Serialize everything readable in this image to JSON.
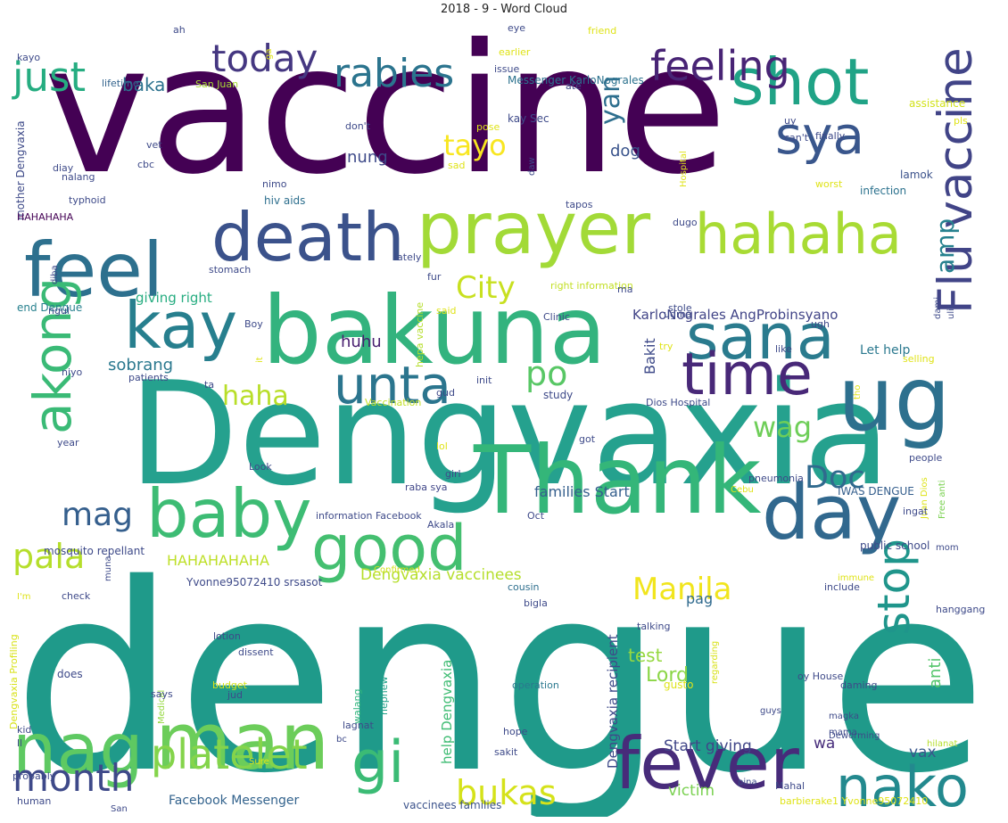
{
  "chart_data": {
    "type": "wordcloud",
    "title": "2018 - 9 - Word Cloud",
    "words": [
      {
        "text": "vaccine",
        "color": "#440154",
        "weight": 100
      },
      {
        "text": "dengue",
        "color": "#1f9a8a",
        "weight": 100
      },
      {
        "text": "Dengvaxia",
        "color": "#25a18e",
        "weight": 75
      },
      {
        "text": "bakuna",
        "color": "#33b37e",
        "weight": 60
      },
      {
        "text": "Thank",
        "color": "#34b679",
        "weight": 60
      },
      {
        "text": "sana",
        "color": "#2a7b8e",
        "weight": 50
      },
      {
        "text": "day",
        "color": "#31688e",
        "weight": 50
      },
      {
        "text": "fever",
        "color": "#472b7a",
        "weight": 45
      },
      {
        "text": "man",
        "color": "#6ccd5a",
        "weight": 45
      },
      {
        "text": "feel",
        "color": "#2d708e",
        "weight": 45
      },
      {
        "text": "death",
        "color": "#3b528b",
        "weight": 40
      },
      {
        "text": "prayer",
        "color": "#a2da37",
        "weight": 40
      },
      {
        "text": "ug",
        "color": "#2d708e",
        "weight": 40
      },
      {
        "text": "shot",
        "color": "#20a386",
        "weight": 35
      },
      {
        "text": "hahaha",
        "color": "#a8db34",
        "weight": 35
      },
      {
        "text": "Flu vaccine",
        "color": "#414487",
        "weight": 35
      },
      {
        "text": "kay",
        "color": "#277f8e",
        "weight": 35
      },
      {
        "text": "nag",
        "color": "#5ec962",
        "weight": 35
      },
      {
        "text": "baby",
        "color": "#3dbc74",
        "weight": 35
      },
      {
        "text": "good",
        "color": "#44bf70",
        "weight": 35
      },
      {
        "text": "time",
        "color": "#482878",
        "weight": 35
      },
      {
        "text": "unta",
        "color": "#2b758e",
        "weight": 32
      },
      {
        "text": "gi",
        "color": "#3bbb75",
        "weight": 32
      },
      {
        "text": "nako",
        "color": "#23898e",
        "weight": 32
      },
      {
        "text": "akong",
        "color": "#3aba76",
        "weight": 30
      },
      {
        "text": "sya",
        "color": "#39568c",
        "weight": 30
      },
      {
        "text": "stop",
        "color": "#1f958b",
        "weight": 28
      },
      {
        "text": "platelet",
        "color": "#84d44b",
        "weight": 28
      },
      {
        "text": "month",
        "color": "#3e4989",
        "weight": 25
      },
      {
        "text": "just",
        "color": "#26ad81",
        "weight": 25
      },
      {
        "text": "feeling",
        "color": "#482475",
        "weight": 25
      },
      {
        "text": "today",
        "color": "#453781",
        "weight": 25
      },
      {
        "text": "rabies",
        "color": "#2b748e",
        "weight": 25
      },
      {
        "text": "bukas",
        "color": "#d5e21a",
        "weight": 25
      },
      {
        "text": "pala",
        "color": "#b5de2b",
        "weight": 25
      },
      {
        "text": "mag",
        "color": "#355f8d",
        "weight": 25
      },
      {
        "text": "Doc",
        "color": "#306a8e",
        "weight": 25
      },
      {
        "text": "po",
        "color": "#58c765",
        "weight": 25
      },
      {
        "text": "City",
        "color": "#c8e020",
        "weight": 25
      },
      {
        "text": "Manila",
        "color": "#f1e51d",
        "weight": 22
      },
      {
        "text": "tayo",
        "color": "#f8e621",
        "weight": 20
      },
      {
        "text": "haha",
        "color": "#b8de29",
        "weight": 20
      },
      {
        "text": "wag",
        "color": "#6ece58",
        "weight": 20
      },
      {
        "text": "yan",
        "color": "#2e6f8e",
        "weight": 20
      },
      {
        "text": "amp",
        "color": "#26818e",
        "weight": 20
      },
      {
        "text": "Lord",
        "color": "#8bd646",
        "weight": 18
      },
      {
        "text": "baka",
        "color": "#2c728e",
        "weight": 15
      },
      {
        "text": "dog",
        "color": "#3a548c",
        "weight": 15
      },
      {
        "text": "nung",
        "color": "#3e4a89",
        "weight": 15
      },
      {
        "text": "huhu",
        "color": "#481f70",
        "weight": 15
      },
      {
        "text": "giving right",
        "color": "#27ad81",
        "weight": 14
      },
      {
        "text": "sobrang",
        "color": "#2a788e",
        "weight": 15
      },
      {
        "text": "HAHAHAHAHA",
        "color": "#bddf26",
        "weight": 15
      },
      {
        "text": "Dengvaxia vaccinees",
        "color": "#b5de2b",
        "weight": 16
      },
      {
        "text": "families Start",
        "color": "#355f8d",
        "weight": 15
      },
      {
        "text": "KarloNograles AngProbinsyano",
        "color": "#414487",
        "weight": 14
      },
      {
        "text": "Bakit",
        "color": "#3e4a89",
        "weight": 14
      },
      {
        "text": "Let help",
        "color": "#2a788e",
        "weight": 14
      },
      {
        "text": "test",
        "color": "#95d840",
        "weight": 16
      },
      {
        "text": "pag",
        "color": "#306a8e",
        "weight": 14
      },
      {
        "text": "anti",
        "color": "#52c569",
        "weight": 14
      },
      {
        "text": "help Dengvaxia",
        "color": "#3fbc73",
        "weight": 14
      },
      {
        "text": "Dengvaxia recipient",
        "color": "#3e4a89",
        "weight": 14
      },
      {
        "text": "Start giving",
        "color": "#404688",
        "weight": 14
      },
      {
        "text": "wa",
        "color": "#472d7b",
        "weight": 15
      },
      {
        "text": "vax",
        "color": "#39568c",
        "weight": 15
      },
      {
        "text": "victim",
        "color": "#7ad151",
        "weight": 15
      },
      {
        "text": "Facebook Messenger",
        "color": "#33638d",
        "weight": 13
      },
      {
        "text": "Messenger KarloNograles",
        "color": "#2c728e",
        "weight": 11
      },
      {
        "text": "lamok",
        "color": "#3b528b",
        "weight": 10
      },
      {
        "text": "infection",
        "color": "#2c728e",
        "weight": 10
      },
      {
        "text": "assistance",
        "color": "#d2e21b",
        "weight": 10
      },
      {
        "text": "Yvonne95072410 srsasot",
        "color": "#3e4a89",
        "weight": 9
      },
      {
        "text": "barbierake1 Yvonne95072410",
        "color": "#dfe318",
        "weight": 9
      },
      {
        "text": "vaccinees families",
        "color": "#3b528b",
        "weight": 9
      },
      {
        "text": "IWAS DENGUE",
        "color": "#355f8d",
        "weight": 9
      },
      {
        "text": "Dios Hospital",
        "color": "#3e4a89",
        "weight": 9
      },
      {
        "text": "right information",
        "color": "#c2df23",
        "weight": 9
      },
      {
        "text": "information Facebook",
        "color": "#3e4a89",
        "weight": 9
      },
      {
        "text": "mosquito repellant",
        "color": "#3e4a89",
        "weight": 9
      },
      {
        "text": "public school",
        "color": "#3e4a89",
        "weight": 9
      },
      {
        "text": "mother Dengvaxia",
        "color": "#3e4a89",
        "weight": 9
      },
      {
        "text": "Dengvaxia Profiling",
        "color": "#d8e219",
        "weight": 9
      },
      {
        "text": "HAHAHAHA",
        "color": "#440154",
        "weight": 9
      },
      {
        "text": "end Dengue",
        "color": "#27808e",
        "weight": 9
      },
      {
        "text": "hiv aids",
        "color": "#2e6f8e",
        "weight": 9
      },
      {
        "text": "hepa vaccine",
        "color": "#b5de2b",
        "weight": 8
      },
      {
        "text": "San Juan",
        "color": "#a8db34",
        "weight": 9
      },
      {
        "text": "Juan Dios",
        "color": "#dde318",
        "weight": 8
      },
      {
        "text": "Free anti",
        "color": "#7ad151",
        "weight": 8
      },
      {
        "text": "kay Sec",
        "color": "#3e4a89",
        "weight": 9
      },
      {
        "text": "lifetime",
        "color": "#33638d",
        "weight": 9
      },
      {
        "text": "pneumonia",
        "color": "#3e4a89",
        "weight": 9
      },
      {
        "text": "raba sya",
        "color": "#404688",
        "weight": 9
      },
      {
        "text": "Akala",
        "color": "#3e4a89",
        "weight": 9
      },
      {
        "text": "cousin",
        "color": "#2e6f8e",
        "weight": 9
      },
      {
        "text": "Confirmed",
        "color": "#d2e21b",
        "weight": 9
      },
      {
        "text": "Vaccination",
        "color": "#c2df23",
        "weight": 9
      },
      {
        "text": "operation",
        "color": "#2a788e",
        "weight": 9
      },
      {
        "text": "nephew",
        "color": "#1fa188",
        "weight": 9
      },
      {
        "text": "walang",
        "color": "#2fb47c",
        "weight": 9
      },
      {
        "text": "gusto",
        "color": "#dfe318",
        "weight": 9
      },
      {
        "text": "daming",
        "color": "#3e4a89",
        "weight": 8
      },
      {
        "text": "oy House",
        "color": "#3e4a89",
        "weight": 9
      },
      {
        "text": "regarding",
        "color": "#d8e219",
        "weight": 8
      },
      {
        "text": "talking",
        "color": "#3e4a89",
        "weight": 9
      },
      {
        "text": "immune",
        "color": "#dfe318",
        "weight": 8
      },
      {
        "text": "include",
        "color": "#3e4a89",
        "weight": 8
      },
      {
        "text": "hanggang",
        "color": "#3e4a89",
        "weight": 9
      },
      {
        "text": "Deworming",
        "color": "#3e4a89",
        "weight": 8
      },
      {
        "text": "hilanat",
        "color": "#b5de2b",
        "weight": 8
      },
      {
        "text": "mama",
        "color": "#3e4a89",
        "weight": 8
      },
      {
        "text": "magka",
        "color": "#3e4a89",
        "weight": 8
      },
      {
        "text": "guys",
        "color": "#3e4a89",
        "weight": 8
      },
      {
        "text": "pina",
        "color": "#3e4a89",
        "weight": 8
      },
      {
        "text": "Mahal",
        "color": "#3e4a89",
        "weight": 9
      },
      {
        "text": "hope",
        "color": "#3e4a89",
        "weight": 9
      },
      {
        "text": "sakit",
        "color": "#3e4a89",
        "weight": 9
      },
      {
        "text": "bigla",
        "color": "#3e4a89",
        "weight": 9
      },
      {
        "text": "lotion",
        "color": "#3e4a89",
        "weight": 9
      },
      {
        "text": "dissent",
        "color": "#3e4a89",
        "weight": 9
      },
      {
        "text": "budget",
        "color": "#d8e219",
        "weight": 9
      },
      {
        "text": "jud",
        "color": "#3e4a89",
        "weight": 9
      },
      {
        "text": "lagnat",
        "color": "#3e4a89",
        "weight": 9
      },
      {
        "text": "Medical",
        "color": "#95d840",
        "weight": 8
      },
      {
        "text": "bc",
        "color": "#3e4a89",
        "weight": 8
      },
      {
        "text": "kid",
        "color": "#3e4a89",
        "weight": 9
      },
      {
        "text": "ll",
        "color": "#3e4a89",
        "weight": 9
      },
      {
        "text": "probably",
        "color": "#3e4a89",
        "weight": 9
      },
      {
        "text": "human",
        "color": "#3e4a89",
        "weight": 8
      },
      {
        "text": "San",
        "color": "#3e4a89",
        "weight": 8
      },
      {
        "text": "Sure",
        "color": "#dfe318",
        "weight": 8
      },
      {
        "text": "does",
        "color": "#3e4a89",
        "weight": 9
      },
      {
        "text": "says",
        "color": "#3e4a89",
        "weight": 9
      },
      {
        "text": "check",
        "color": "#3e4a89",
        "weight": 9
      },
      {
        "text": "I'm",
        "color": "#dfe318",
        "weight": 8
      },
      {
        "text": "muna",
        "color": "#3e4a89",
        "weight": 8
      },
      {
        "text": "year",
        "color": "#3e4a89",
        "weight": 9
      },
      {
        "text": "Look",
        "color": "#3e4a89",
        "weight": 9
      },
      {
        "text": "girl",
        "color": "#3e4a89",
        "weight": 9
      },
      {
        "text": "Oct",
        "color": "#3e4a89",
        "weight": 9
      },
      {
        "text": "Cebu",
        "color": "#dfe318",
        "weight": 9
      },
      {
        "text": "lol",
        "color": "#dfe318",
        "weight": 9
      },
      {
        "text": "got",
        "color": "#3e4a89",
        "weight": 9
      },
      {
        "text": "people",
        "color": "#3e4a89",
        "weight": 9
      },
      {
        "text": "ingat",
        "color": "#3e4a89",
        "weight": 9
      },
      {
        "text": "mom",
        "color": "#3e4a89",
        "weight": 8
      },
      {
        "text": "study",
        "color": "#3e4a89",
        "weight": 9
      },
      {
        "text": "gud",
        "color": "#3e4a89",
        "weight": 9
      },
      {
        "text": "init",
        "color": "#3e4a89",
        "weight": 9
      },
      {
        "text": "tho",
        "color": "#dfe318",
        "weight": 8
      },
      {
        "text": "selling",
        "color": "#dfe318",
        "weight": 9
      },
      {
        "text": "like",
        "color": "#3e4a89",
        "weight": 9
      },
      {
        "text": "ugh",
        "color": "#3e4a89",
        "weight": 9
      },
      {
        "text": "try",
        "color": "#dfe318",
        "weight": 9
      },
      {
        "text": "ugma",
        "color": "#3e4a89",
        "weight": 9
      },
      {
        "text": "stole",
        "color": "#3e4a89",
        "weight": 9
      },
      {
        "text": "dami",
        "color": "#3e4a89",
        "weight": 8
      },
      {
        "text": "ulit",
        "color": "#3e4a89",
        "weight": 8
      },
      {
        "text": "ma",
        "color": "#3e4a89",
        "weight": 9
      },
      {
        "text": "Clinic",
        "color": "#3e4a89",
        "weight": 9
      },
      {
        "text": "dugo",
        "color": "#3e4a89",
        "weight": 9
      },
      {
        "text": "patients",
        "color": "#3e4a89",
        "weight": 9
      },
      {
        "text": "niyo",
        "color": "#3e4a89",
        "weight": 9
      },
      {
        "text": "ngul",
        "color": "#3e4a89",
        "weight": 9
      },
      {
        "text": "Boy",
        "color": "#3e4a89",
        "weight": 9
      },
      {
        "text": "it",
        "color": "#dfe318",
        "weight": 8
      },
      {
        "text": "ta",
        "color": "#3e4a89",
        "weight": 9
      },
      {
        "text": "said",
        "color": "#dfe318",
        "weight": 9
      },
      {
        "text": "fur",
        "color": "#3e4a89",
        "weight": 9
      },
      {
        "text": "lately",
        "color": "#3e4a89",
        "weight": 9
      },
      {
        "text": "diba",
        "color": "#3e4a89",
        "weight": 8
      },
      {
        "text": "stomach",
        "color": "#3e4a89",
        "weight": 9
      },
      {
        "text": "nimo",
        "color": "#3e4a89",
        "weight": 9
      },
      {
        "text": "worst",
        "color": "#dfe318",
        "weight": 9
      },
      {
        "text": "Hospital",
        "color": "#dfe318",
        "weight": 8
      },
      {
        "text": "can't",
        "color": "#3e4a89",
        "weight": 9
      },
      {
        "text": "finally",
        "color": "#3e4a89",
        "weight": 9
      },
      {
        "text": "tapos",
        "color": "#3e4a89",
        "weight": 9
      },
      {
        "text": "daw",
        "color": "#3e4a89",
        "weight": 8
      },
      {
        "text": "sad",
        "color": "#dfe318",
        "weight": 9
      },
      {
        "text": "cbc",
        "color": "#3e4a89",
        "weight": 9
      },
      {
        "text": "typhoid",
        "color": "#3e4a89",
        "weight": 9
      },
      {
        "text": "nalang",
        "color": "#3e4a89",
        "weight": 9
      },
      {
        "text": "diay",
        "color": "#3e4a89",
        "weight": 9
      },
      {
        "text": "vet",
        "color": "#3e4a89",
        "weight": 9
      },
      {
        "text": "don't",
        "color": "#3e4a89",
        "weight": 9
      },
      {
        "text": "pose",
        "color": "#dfe318",
        "weight": 9
      },
      {
        "text": "uy",
        "color": "#3e4a89",
        "weight": 9
      },
      {
        "text": "pls",
        "color": "#dfe318",
        "weight": 9
      },
      {
        "text": "ate",
        "color": "#3e4a89",
        "weight": 9
      },
      {
        "text": "earlier",
        "color": "#dfe318",
        "weight": 9
      },
      {
        "text": "issue",
        "color": "#3e4a89",
        "weight": 9
      },
      {
        "text": "eye",
        "color": "#3e4a89",
        "weight": 9
      },
      {
        "text": "friend",
        "color": "#dfe318",
        "weight": 9
      },
      {
        "text": "ah",
        "color": "#3e4a89",
        "weight": 9
      },
      {
        "text": "kayo",
        "color": "#3e4a89",
        "weight": 9
      },
      {
        "text": "ga",
        "color": "#dfe318",
        "weight": 8
      }
    ]
  }
}
